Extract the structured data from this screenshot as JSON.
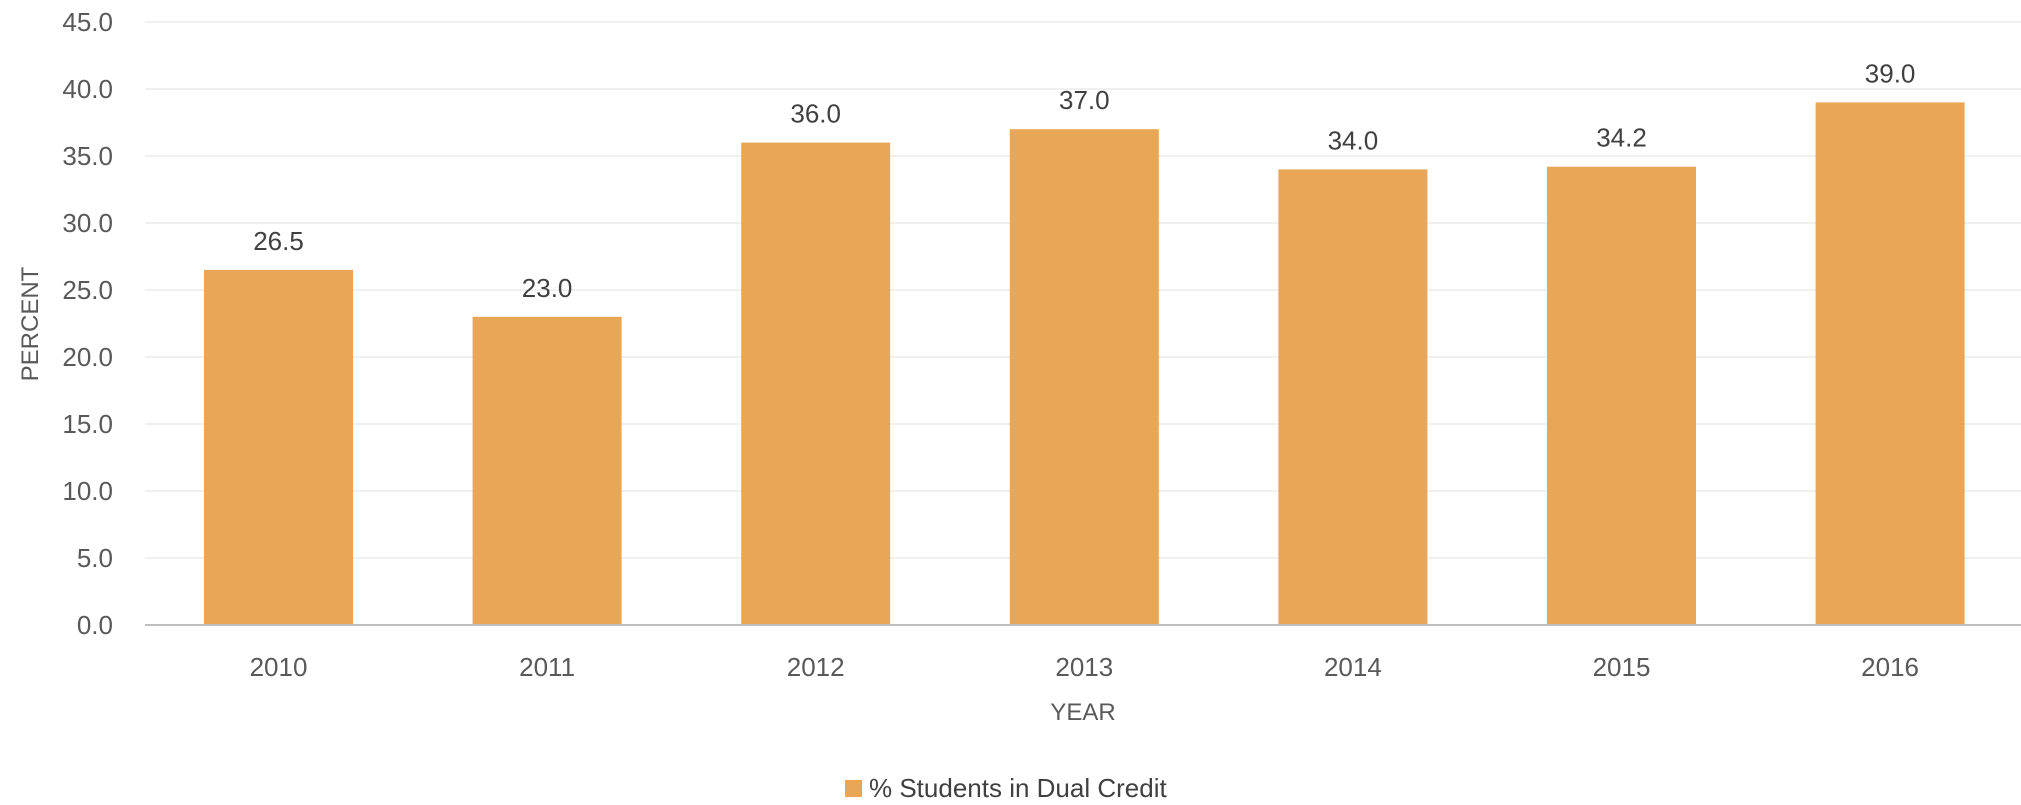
{
  "chart_data": {
    "type": "bar",
    "categories": [
      "2010",
      "2011",
      "2012",
      "2013",
      "2014",
      "2015",
      "2016"
    ],
    "series": [
      {
        "name": "% Students in Dual Credit",
        "values": [
          26.5,
          23.0,
          36.0,
          37.0,
          34.0,
          34.2,
          39.0
        ],
        "color": "#E9A656"
      }
    ],
    "data_labels": [
      "26.5",
      "23.0",
      "36.0",
      "37.0",
      "34.0",
      "34.2",
      "39.0"
    ],
    "y_ticks": [
      "0.0",
      "5.0",
      "10.0",
      "15.0",
      "20.0",
      "25.0",
      "30.0",
      "35.0",
      "40.0",
      "45.0"
    ],
    "title": "",
    "xlabel": "YEAR",
    "ylabel": "PERCENT",
    "ylim": [
      0,
      45
    ],
    "grid": true,
    "legend_position": "bottom",
    "colors": {
      "bar": "#E9A656",
      "gridline": "#EBEBEB",
      "axis": "#BFBFBF"
    }
  }
}
